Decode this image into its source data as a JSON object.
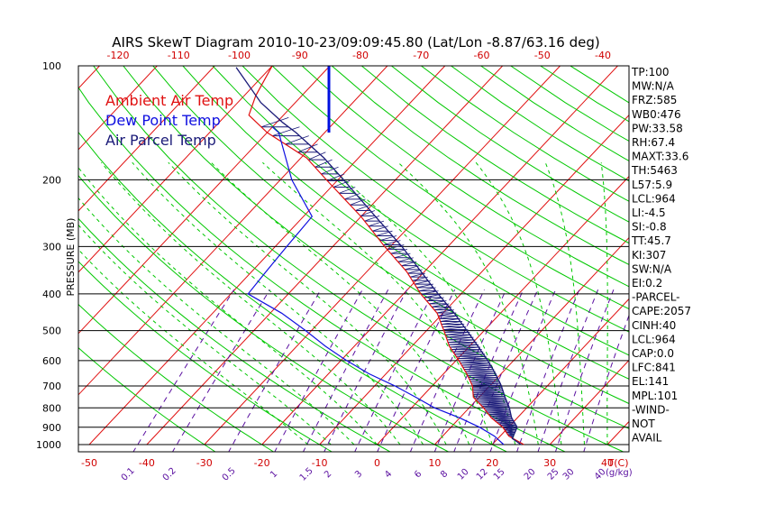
{
  "chart_data": {
    "type": "line",
    "title": "AIRS SkewT Diagram 2010-10-23/09:09:45.80 (Lat/Lon -8.87/63.16 deg)",
    "ylabel": "PRESSURE (MB)",
    "xlabel_unit": "T(C)",
    "mixing_unit": "(g/kg)",
    "y_scale": "log-pressure",
    "ylim": [
      1000,
      100
    ],
    "xlim": [
      -50,
      40
    ],
    "pressure_ticks": [
      100,
      200,
      300,
      400,
      500,
      600,
      700,
      800,
      900,
      1000
    ],
    "temp_ticks_top": [
      -120,
      -110,
      -100,
      -90,
      -80,
      -70,
      -60,
      -50,
      -40
    ],
    "temp_ticks_bottom": [
      -50,
      -40,
      -30,
      -20,
      -10,
      0,
      10,
      20,
      30,
      40
    ],
    "mixing_ratio_labels": [
      "0.1",
      "0.2",
      "0.5",
      "1",
      "1.5",
      "2",
      "3",
      "4",
      "6",
      "8",
      "10",
      "12",
      "15",
      "20",
      "25",
      "30",
      "40"
    ],
    "legend": [
      {
        "label": "Ambient Air Temp",
        "color": "#e01010"
      },
      {
        "label": "Dew Point Temp",
        "color": "#1010e0"
      },
      {
        "label": "Air Parcel Temp",
        "color": "#1a1a78"
      }
    ],
    "series": [
      {
        "name": "Ambient Air Temp",
        "color": "#e01010",
        "points": [
          [
            1000,
            25.5
          ],
          [
            950,
            21.5
          ],
          [
            900,
            19.0
          ],
          [
            850,
            15.5
          ],
          [
            800,
            12.5
          ],
          [
            750,
            9.0
          ],
          [
            700,
            7.0
          ],
          [
            650,
            4.0
          ],
          [
            600,
            0.5
          ],
          [
            550,
            -3.5
          ],
          [
            500,
            -7.0
          ],
          [
            450,
            -11.0
          ],
          [
            400,
            -17.0
          ],
          [
            350,
            -23.0
          ],
          [
            300,
            -31.0
          ],
          [
            250,
            -40.0
          ],
          [
            200,
            -52.0
          ],
          [
            175,
            -59.0
          ],
          [
            150,
            -70.0
          ],
          [
            135,
            -76.0
          ],
          [
            120,
            -78.0
          ],
          [
            100,
            -80.0
          ]
        ]
      },
      {
        "name": "Dew Point Temp",
        "color": "#1010e0",
        "points": [
          [
            1000,
            22.0
          ],
          [
            950,
            19.0
          ],
          [
            900,
            15.0
          ],
          [
            850,
            10.0
          ],
          [
            800,
            4.0
          ],
          [
            750,
            -1.0
          ],
          [
            700,
            -6.5
          ],
          [
            650,
            -13.0
          ],
          [
            600,
            -19.0
          ],
          [
            550,
            -25.0
          ],
          [
            500,
            -31.0
          ],
          [
            450,
            -38.0
          ],
          [
            400,
            -47.0
          ],
          [
            350,
            -47.5
          ],
          [
            300,
            -48.0
          ],
          [
            250,
            -48.5
          ],
          [
            200,
            -58.0
          ],
          [
            150,
            -68.0
          ],
          [
            145,
            -70.0
          ]
        ]
      },
      {
        "name": "Air Parcel Temp",
        "color": "#1a1a78",
        "points": [
          [
            1000,
            25.0
          ],
          [
            964,
            22.5
          ],
          [
            900,
            21.5
          ],
          [
            850,
            19.0
          ],
          [
            800,
            17.0
          ],
          [
            750,
            14.5
          ],
          [
            700,
            12.0
          ],
          [
            650,
            9.0
          ],
          [
            600,
            5.5
          ],
          [
            550,
            1.5
          ],
          [
            500,
            -3.0
          ],
          [
            450,
            -8.0
          ],
          [
            400,
            -14.0
          ],
          [
            350,
            -20.5
          ],
          [
            300,
            -28.0
          ],
          [
            250,
            -37.5
          ],
          [
            200,
            -49.0
          ],
          [
            175,
            -56.0
          ],
          [
            150,
            -65.0
          ],
          [
            141,
            -69.0
          ],
          [
            125,
            -76.0
          ],
          [
            101,
            -86.0
          ]
        ]
      }
    ],
    "wind_barb": {
      "pressure_top": 100,
      "pressure_bottom": 150,
      "temperature": -73
    }
  },
  "stats": [
    "TP:100",
    "MW:N/A",
    "FRZ:585",
    "WB0:476",
    "PW:33.58",
    "RH:67.4",
    "MAXT:33.6",
    "TH:5463",
    "L57:5.9",
    "LCL:964",
    "LI:-4.5",
    "SI:-0.8",
    "TT:45.7",
    "KI:307",
    "SW:N/A",
    "EI:0.2",
    "-PARCEL-",
    "CAPE:2057",
    "CINH:40",
    "LCL:964",
    "CAP:0.0",
    "LFC:841",
    "EL:141",
    "MPL:101",
    "-WIND-",
    "NOT",
    "AVAIL"
  ],
  "colors": {
    "isotherm": "#e01010",
    "dry_adiabat": "#00c800",
    "moist_adiabat": "#00c800",
    "mixing_ratio": "#5a0fa0",
    "isobar": "#000000",
    "cape_hatch": "#1a1a78"
  }
}
